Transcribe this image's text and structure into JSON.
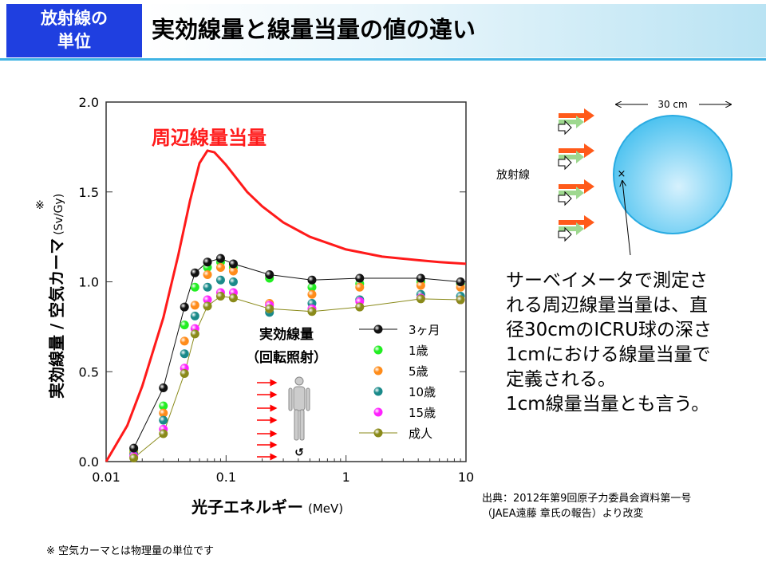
{
  "header": {
    "category": "放射線の\n単位",
    "category_line1": "放射線の",
    "category_line2": "単位",
    "title": "実効線量と線量当量の値の違い"
  },
  "chart_data": {
    "type": "scatter-line",
    "xlabel": "光子エネルギー",
    "xunit": "(MeV)",
    "ylabel": "実効線量 / 空気カーマ",
    "yunit": "(Sv/Gy)",
    "ylabel_mark": "※",
    "xscale": "log",
    "xlim": [
      0.01,
      10
    ],
    "ylim": [
      0,
      2.0
    ],
    "xticks": [
      "0.01",
      "0.1",
      "1",
      "10"
    ],
    "yticks": [
      "0.0",
      "0.5",
      "1.0",
      "1.5",
      "2.0"
    ],
    "annotation_red": "周辺線量当量",
    "annotation_center": "実効線量",
    "annotation_center2": "（回転照射）",
    "legend_placement": "bottom-right",
    "curve": {
      "name": "周辺線量当量",
      "color": "#ff1a1a",
      "x": [
        0.01,
        0.015,
        0.02,
        0.03,
        0.04,
        0.05,
        0.06,
        0.07,
        0.08,
        0.1,
        0.15,
        0.2,
        0.3,
        0.5,
        1,
        2,
        4,
        6,
        10
      ],
      "y": [
        0,
        0.2,
        0.42,
        0.8,
        1.15,
        1.45,
        1.66,
        1.73,
        1.72,
        1.65,
        1.5,
        1.42,
        1.33,
        1.25,
        1.18,
        1.14,
        1.12,
        1.11,
        1.1
      ]
    },
    "x": [
      0.017,
      0.03,
      0.045,
      0.055,
      0.07,
      0.09,
      0.115,
      0.23,
      0.52,
      1.3,
      4.2,
      9.0
    ],
    "series": [
      {
        "name": "3ヶ月",
        "color": "#111111",
        "line": true,
        "values": [
          0.075,
          0.41,
          0.86,
          1.05,
          1.11,
          1.13,
          1.1,
          1.04,
          1.01,
          1.02,
          1.02,
          1.0
        ]
      },
      {
        "name": "1歳",
        "color": "#22ee22",
        "line": false,
        "values": [
          0.06,
          0.31,
          0.76,
          0.97,
          1.08,
          1.11,
          1.08,
          1.02,
          0.97,
          0.99,
          1.0,
          0.99
        ]
      },
      {
        "name": "5歳",
        "color": "#ff8c1a",
        "line": false,
        "values": [
          0.05,
          0.27,
          0.67,
          0.87,
          1.04,
          1.08,
          1.06,
          0.88,
          0.93,
          0.97,
          0.98,
          0.97
        ]
      },
      {
        "name": "10歳",
        "color": "#1a8a8a",
        "line": false,
        "values": [
          0.04,
          0.23,
          0.6,
          0.81,
          0.97,
          1.01,
          1.0,
          0.83,
          0.88,
          0.9,
          0.93,
          0.92
        ]
      },
      {
        "name": "15歳",
        "color": "#ff22ff",
        "line": false,
        "values": [
          0.03,
          0.18,
          0.52,
          0.74,
          0.9,
          0.94,
          0.94,
          0.87,
          0.85,
          0.89,
          0.91,
          0.9
        ]
      },
      {
        "name": "成人",
        "color": "#8a8a1a",
        "line": true,
        "values": [
          0.02,
          0.155,
          0.49,
          0.71,
          0.865,
          0.92,
          0.91,
          0.85,
          0.835,
          0.86,
          0.905,
          0.9
        ]
      }
    ]
  },
  "diagram": {
    "width_label": "30 cm",
    "radiation_label": "放射線",
    "sphere_color": "#4fc3f0"
  },
  "description": [
    "サーベイメータで測定さ",
    "れる周辺線量当量は、直",
    "径30cmのICRU球の深さ",
    "1cmにおける線量当量で",
    "定義される。",
    "1cm線量当量とも言う。"
  ],
  "source": {
    "line1": "出典：2012年第9回原子力委員会資料第一号",
    "line2": "（JAEA遠藤 章氏の報告）より改変"
  },
  "footnote": "※ 空気カーマとは物理量の単位です"
}
